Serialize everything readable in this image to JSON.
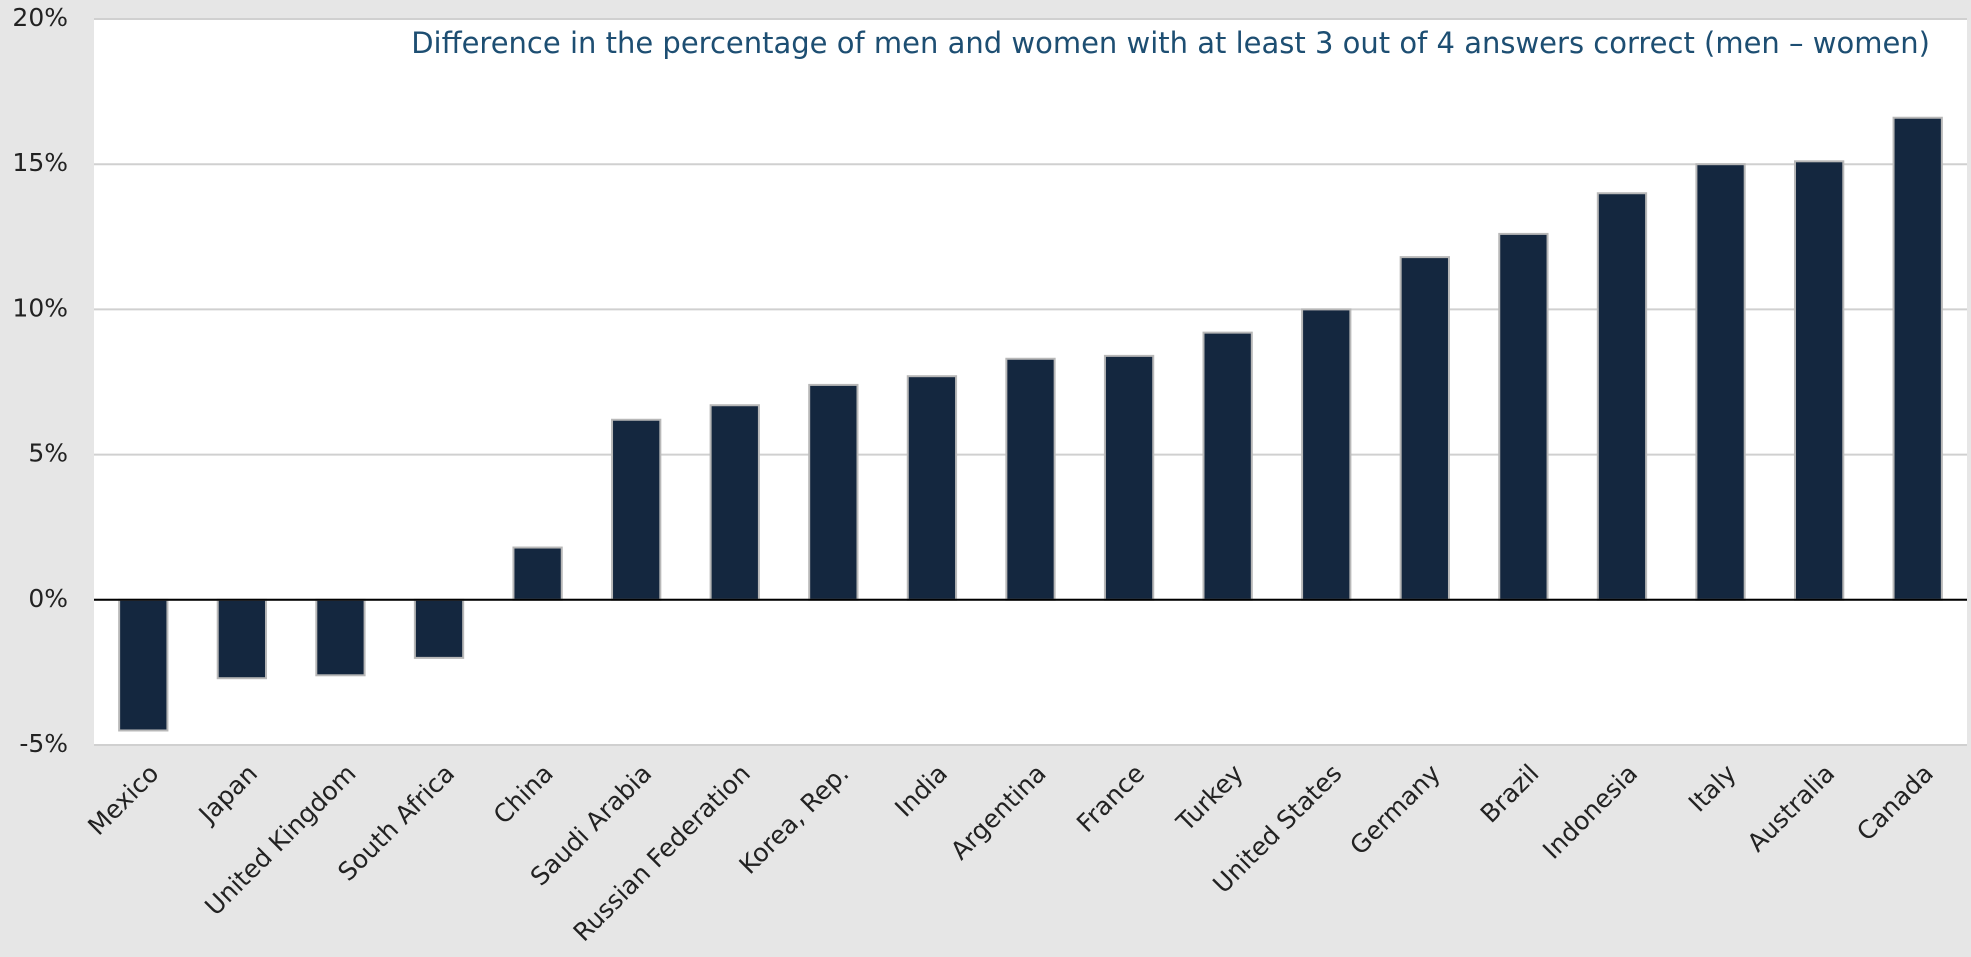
{
  "chart_data": {
    "type": "bar",
    "title": "Difference in the percentage of men and women with at least 3 out of 4 answers correct (men – women)",
    "categories": [
      "Mexico",
      "Japan",
      "United Kingdom",
      "South Africa",
      "China",
      "Saudi Arabia",
      "Russian Federation",
      "Korea, Rep.",
      "India",
      "Argentina",
      "France",
      "Turkey",
      "United States",
      "Germany",
      "Brazil",
      "Indonesia",
      "Italy",
      "Australia",
      "Canada"
    ],
    "values": [
      -4.5,
      -2.7,
      -2.6,
      -2.0,
      1.8,
      6.2,
      6.7,
      7.4,
      7.7,
      8.3,
      8.4,
      9.2,
      10.0,
      11.8,
      12.6,
      14.0,
      15.0,
      15.1,
      16.6
    ],
    "color": "#14273f",
    "ylim": [
      -5,
      20
    ],
    "yticks": [
      {
        "value": -5,
        "label": "-5%"
      },
      {
        "value": 0,
        "label": "0%"
      },
      {
        "value": 5,
        "label": "5%"
      },
      {
        "value": 10,
        "label": "10%"
      },
      {
        "value": 15,
        "label": "15%"
      },
      {
        "value": 20,
        "label": "20%"
      }
    ],
    "grid": true
  }
}
